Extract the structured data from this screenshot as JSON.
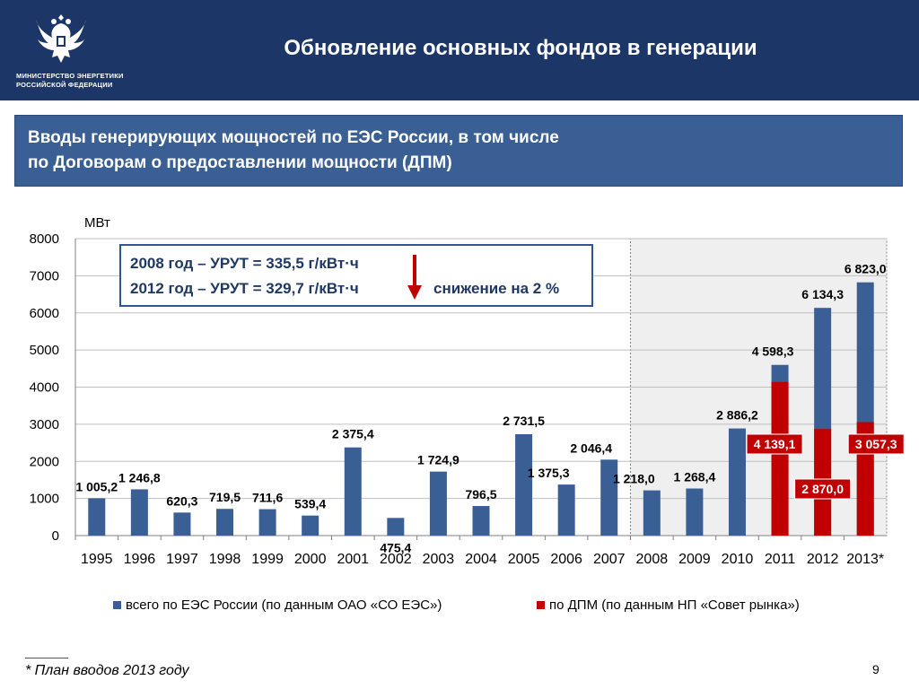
{
  "header": {
    "title": "Обновление основных фондов в генерации",
    "ministry_line1": "МИНИСТЕРСТВО ЭНЕРГЕТИКИ",
    "ministry_line2": "РОССИЙСКОЙ ФЕДЕРАЦИИ",
    "emblem": "double-headed-eagle-emblem"
  },
  "subtitle": {
    "line1": "Вводы генерирующих мощностей по ЕЭС России, в том числе",
    "line2": "по Договорам о предоставлении мощности (ДПМ)"
  },
  "urut": {
    "line1": "2008 год – УРУТ = 335,5 г/кВт·ч",
    "line2": "2012 год – УРУТ = 329,7 г/кВт·ч",
    "decrease": "снижение на 2 %"
  },
  "chart_data": {
    "type": "bar",
    "ylabel": "МВт",
    "ylim": [
      0,
      8000
    ],
    "yticks": [
      "0",
      "1000",
      "2000",
      "3000",
      "4000",
      "5000",
      "6000",
      "7000",
      "8000"
    ],
    "categories": [
      "1995",
      "1996",
      "1997",
      "1998",
      "1999",
      "2000",
      "2001",
      "2002",
      "2003",
      "2004",
      "2005",
      "2006",
      "2007",
      "2008",
      "2009",
      "2010",
      "2011",
      "2012",
      "2013*"
    ],
    "highlight_range": [
      "2008",
      "2013*"
    ],
    "legend_position": "bottom",
    "series": [
      {
        "name": "всего по ЕЭС России (по данным ОАО «СО ЕЭС»)",
        "color": "#3a5f95",
        "values": [
          1005.2,
          1246.8,
          620.3,
          719.5,
          711.6,
          539.4,
          2375.4,
          475.4,
          1724.9,
          796.5,
          2731.5,
          1375.3,
          2046.4,
          1218.0,
          1268.4,
          2886.2,
          4598.3,
          6134.3,
          6823.0
        ],
        "labels": [
          "1 005,2",
          "1 246,8",
          "620,3",
          "719,5",
          "711,6",
          "539,4",
          "2 375,4",
          "475,4",
          "1 724,9",
          "796,5",
          "2 731,5",
          "1 375,3",
          "2 046,4",
          "1 218,0",
          "1 268,4",
          "2 886,2",
          "4 598,3",
          "6 134,3",
          "6 823,0"
        ]
      },
      {
        "name": "по ДПМ (по данным НП «Совет рынка»)",
        "color": "#c00000",
        "values": [
          null,
          null,
          null,
          null,
          null,
          null,
          null,
          null,
          null,
          null,
          null,
          null,
          null,
          null,
          null,
          null,
          4139.1,
          2870.0,
          3057.3
        ],
        "labels": [
          null,
          null,
          null,
          null,
          null,
          null,
          null,
          null,
          null,
          null,
          null,
          null,
          null,
          null,
          null,
          null,
          "4 139,1",
          "2 870,0",
          "3 057,3"
        ]
      }
    ]
  },
  "footnote": "* План вводов 2013 году",
  "page_number": "9"
}
